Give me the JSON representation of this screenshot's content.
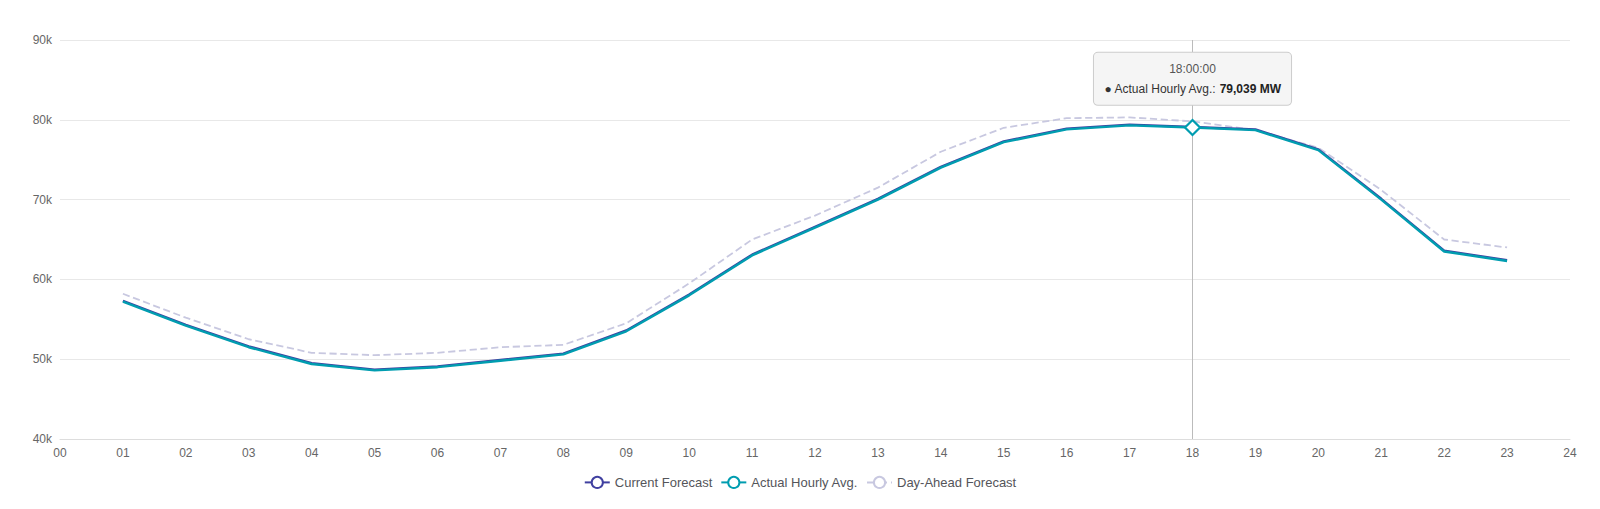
{
  "chart_data": {
    "type": "line",
    "x": [
      0,
      1,
      2,
      3,
      4,
      5,
      6,
      7,
      8,
      9,
      10,
      11,
      12,
      13,
      14,
      15,
      16,
      17,
      18,
      19,
      20,
      21,
      22,
      23,
      24
    ],
    "series": [
      {
        "name": "Current Forecast",
        "color": "#4040a0",
        "line_style": "solid",
        "values": [
          null,
          57300,
          54300,
          51600,
          49500,
          48700,
          49100,
          49900,
          50700,
          53600,
          58100,
          63100,
          66600,
          70100,
          74100,
          77300,
          78900,
          79400,
          79100,
          78800,
          76300,
          70100,
          63600,
          62400,
          null
        ]
      },
      {
        "name": "Actual Hourly Avg.",
        "color": "#009db0",
        "line_style": "solid",
        "values": [
          null,
          57200,
          54200,
          51500,
          49400,
          48600,
          49000,
          49800,
          50600,
          53500,
          58000,
          63000,
          66500,
          70000,
          74000,
          77200,
          78800,
          79300,
          79039,
          78700,
          76200,
          70000,
          63500,
          62300,
          null
        ]
      },
      {
        "name": "Day-Ahead Forecast",
        "color": "#c8c8e0",
        "line_style": "dashed",
        "values": [
          null,
          58200,
          55200,
          52500,
          50800,
          50500,
          50800,
          51500,
          51800,
          54500,
          59500,
          65000,
          68000,
          71500,
          76000,
          79000,
          80200,
          80300,
          79800,
          78700,
          76500,
          71200,
          65000,
          64000,
          null
        ]
      }
    ],
    "xlim": [
      0,
      24
    ],
    "xticks": [
      {
        "value": 0,
        "label": "00"
      },
      {
        "value": 1,
        "label": "01"
      },
      {
        "value": 2,
        "label": "02"
      },
      {
        "value": 3,
        "label": "03"
      },
      {
        "value": 4,
        "label": "04"
      },
      {
        "value": 5,
        "label": "05"
      },
      {
        "value": 6,
        "label": "06"
      },
      {
        "value": 7,
        "label": "07"
      },
      {
        "value": 8,
        "label": "08"
      },
      {
        "value": 9,
        "label": "09"
      },
      10,
      11,
      12,
      13,
      14,
      15,
      16,
      17,
      18,
      19,
      20,
      21,
      22,
      23,
      24
    ],
    "ylim": [
      40000,
      90000
    ],
    "yticks": [
      {
        "value": 40000,
        "label": "40k"
      },
      {
        "value": 50000,
        "label": "50k"
      },
      {
        "value": 60000,
        "label": "60k"
      },
      {
        "value": 70000,
        "label": "70k"
      },
      {
        "value": 80000,
        "label": "80k"
      },
      {
        "value": 90000,
        "label": "90k"
      }
    ],
    "grid": true,
    "legend": "bottom",
    "annotations": [
      {
        "x": 18,
        "y": 79039,
        "marker": "diamond",
        "color": "#009db0",
        "time": "18:00:00",
        "label": "● Actual Hourly Avg.:",
        "value": "79,039 MW"
      }
    ]
  }
}
